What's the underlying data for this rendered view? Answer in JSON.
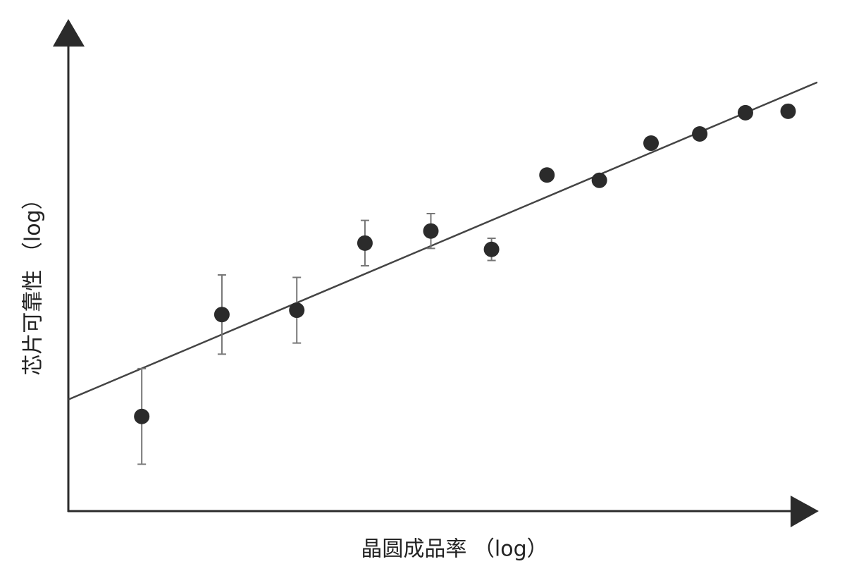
{
  "chart_data": {
    "type": "scatter",
    "x_label": "晶圆成品率 （log）",
    "y_label": "芯片可靠性 （log）",
    "x": [
      9.8,
      20.5,
      30.5,
      39.6,
      48.4,
      56.5,
      63.9,
      70.9,
      77.8,
      84.3,
      90.4,
      96.1
    ],
    "series": [
      {
        "color": "#2b2b2b",
        "values": [
          19.6,
          40.7,
          41.6,
          55.5,
          58.0,
          54.2,
          69.6,
          68.5,
          76.2,
          78.1,
          82.5,
          82.8
        ],
        "errors": [
          9.9,
          8.2,
          6.8,
          4.7,
          3.6,
          2.3,
          null,
          null,
          null,
          null,
          null,
          null
        ]
      }
    ],
    "fit": {
      "color": "#444444",
      "x": [
        0,
        100
      ],
      "y": [
        23.1,
        88.8
      ]
    },
    "xlim": [
      0,
      100
    ],
    "ylim": [
      0,
      100
    ],
    "log_x": true,
    "log_y": true,
    "grid": false
  }
}
